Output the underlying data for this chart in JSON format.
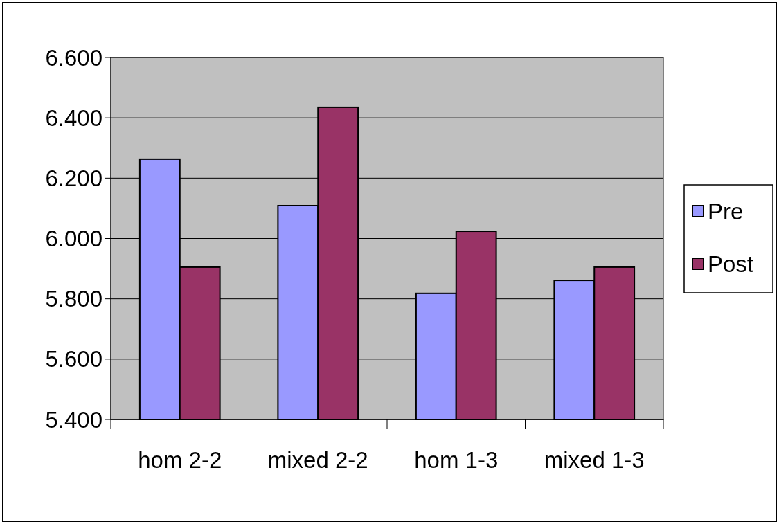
{
  "chart_data": {
    "type": "bar",
    "categories": [
      "hom 2-2",
      "mixed 2-2",
      "hom 1-3",
      "mixed 1-3"
    ],
    "series": [
      {
        "name": "Pre",
        "color": "#9999ff",
        "values": [
          6.263,
          6.109,
          5.818,
          5.861
        ]
      },
      {
        "name": "Post",
        "color": "#993366",
        "values": [
          5.905,
          6.435,
          6.024,
          5.905
        ]
      }
    ],
    "ylim": [
      5.4,
      6.6
    ],
    "yticks": [
      {
        "value": 5.4,
        "label": "5.400"
      },
      {
        "value": 5.6,
        "label": "5.600"
      },
      {
        "value": 5.8,
        "label": "5.800"
      },
      {
        "value": 6.0,
        "label": "6.000"
      },
      {
        "value": 6.2,
        "label": "6.200"
      },
      {
        "value": 6.4,
        "label": "6.400"
      },
      {
        "value": 6.6,
        "label": "6.600"
      }
    ],
    "grid": "y",
    "legend": "right"
  }
}
